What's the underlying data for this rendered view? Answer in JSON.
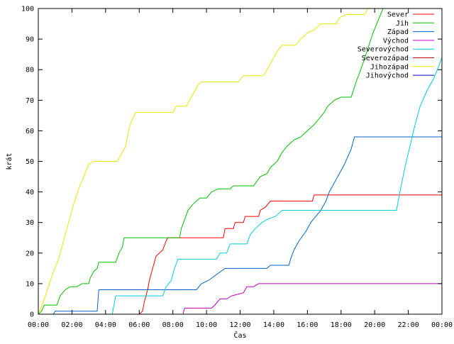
{
  "chart_data": {
    "type": "line",
    "title": "",
    "xlabel": "Čas",
    "ylabel": "krát",
    "xlim": [
      0,
      24
    ],
    "ylim": [
      0,
      100
    ],
    "grid": false,
    "legend_position": "top-right",
    "x_ticks": [
      {
        "v": 0,
        "label": "00:00"
      },
      {
        "v": 2,
        "label": "02:00"
      },
      {
        "v": 4,
        "label": "04:00"
      },
      {
        "v": 6,
        "label": "06:00"
      },
      {
        "v": 8,
        "label": "08:00"
      },
      {
        "v": 10,
        "label": "10:00"
      },
      {
        "v": 12,
        "label": "12:00"
      },
      {
        "v": 14,
        "label": "14:00"
      },
      {
        "v": 16,
        "label": "16:00"
      },
      {
        "v": 18,
        "label": "18:00"
      },
      {
        "v": 20,
        "label": "20:00"
      },
      {
        "v": 22,
        "label": "22:00"
      },
      {
        "v": 24,
        "label": "00:00"
      }
    ],
    "y_ticks": [
      {
        "v": 0,
        "label": "0"
      },
      {
        "v": 10,
        "label": "10"
      },
      {
        "v": 20,
        "label": "20"
      },
      {
        "v": 30,
        "label": "30"
      },
      {
        "v": 40,
        "label": "40"
      },
      {
        "v": 50,
        "label": "50"
      },
      {
        "v": 60,
        "label": "60"
      },
      {
        "v": 70,
        "label": "70"
      },
      {
        "v": 80,
        "label": "80"
      },
      {
        "v": 90,
        "label": "90"
      },
      {
        "v": 100,
        "label": "100"
      }
    ],
    "series": [
      {
        "name": "Sever",
        "color": "#ff0000",
        "points": [
          [
            6.0,
            0
          ],
          [
            6.2,
            1
          ],
          [
            6.3,
            4
          ],
          [
            6.5,
            8
          ],
          [
            6.6,
            11
          ],
          [
            6.75,
            14
          ],
          [
            6.9,
            17
          ],
          [
            7.0,
            19
          ],
          [
            7.2,
            20
          ],
          [
            7.4,
            21
          ],
          [
            7.6,
            24
          ],
          [
            7.7,
            25
          ],
          [
            11.0,
            25
          ],
          [
            11.1,
            28
          ],
          [
            11.6,
            28
          ],
          [
            11.7,
            30
          ],
          [
            12.2,
            30
          ],
          [
            12.3,
            32
          ],
          [
            13.1,
            32
          ],
          [
            13.2,
            34
          ],
          [
            13.5,
            35
          ],
          [
            13.8,
            37
          ],
          [
            16.3,
            37
          ],
          [
            16.4,
            39
          ],
          [
            24,
            39
          ]
        ]
      },
      {
        "name": "Jih",
        "color": "#00c000",
        "points": [
          [
            0,
            0
          ],
          [
            0.2,
            1
          ],
          [
            0.35,
            3
          ],
          [
            1.1,
            3
          ],
          [
            1.3,
            6
          ],
          [
            1.6,
            8
          ],
          [
            1.9,
            9
          ],
          [
            2.3,
            9
          ],
          [
            2.6,
            10
          ],
          [
            3.0,
            10
          ],
          [
            3.1,
            12
          ],
          [
            3.3,
            14
          ],
          [
            3.5,
            15
          ],
          [
            3.6,
            17
          ],
          [
            4.6,
            17
          ],
          [
            4.8,
            20
          ],
          [
            5.0,
            22
          ],
          [
            5.1,
            25
          ],
          [
            8.4,
            25
          ],
          [
            8.5,
            28
          ],
          [
            8.7,
            31
          ],
          [
            8.9,
            34
          ],
          [
            9.2,
            36
          ],
          [
            9.6,
            38
          ],
          [
            10.0,
            38
          ],
          [
            10.3,
            40
          ],
          [
            10.7,
            41
          ],
          [
            11.4,
            41
          ],
          [
            11.6,
            42
          ],
          [
            12.8,
            42
          ],
          [
            13.2,
            45
          ],
          [
            13.6,
            46
          ],
          [
            13.8,
            48
          ],
          [
            14.2,
            50
          ],
          [
            14.5,
            53
          ],
          [
            14.8,
            55
          ],
          [
            15.0,
            56
          ],
          [
            15.2,
            57
          ],
          [
            15.6,
            58
          ],
          [
            16.0,
            60
          ],
          [
            16.4,
            62
          ],
          [
            16.7,
            64
          ],
          [
            17.0,
            66
          ],
          [
            17.2,
            68
          ],
          [
            17.6,
            70
          ],
          [
            18.0,
            71
          ],
          [
            18.6,
            71
          ],
          [
            18.9,
            76
          ],
          [
            19.3,
            82
          ],
          [
            19.6,
            87
          ],
          [
            19.9,
            92
          ],
          [
            20.2,
            96
          ],
          [
            20.5,
            100
          ]
        ]
      },
      {
        "name": "Západ",
        "color": "#0066cc",
        "points": [
          [
            0.9,
            0
          ],
          [
            1.0,
            1
          ],
          [
            3.5,
            1
          ],
          [
            3.6,
            8
          ],
          [
            9.4,
            8
          ],
          [
            9.7,
            10
          ],
          [
            10.1,
            11
          ],
          [
            10.6,
            13
          ],
          [
            11.1,
            15
          ],
          [
            13.6,
            15
          ],
          [
            13.8,
            16
          ],
          [
            14.9,
            16
          ],
          [
            15.0,
            18
          ],
          [
            15.2,
            21
          ],
          [
            15.5,
            24
          ],
          [
            15.9,
            27
          ],
          [
            16.2,
            30
          ],
          [
            16.5,
            32
          ],
          [
            16.8,
            34
          ],
          [
            17.1,
            37
          ],
          [
            17.3,
            40
          ],
          [
            17.6,
            43
          ],
          [
            17.9,
            46
          ],
          [
            18.2,
            49
          ],
          [
            18.6,
            54
          ],
          [
            18.8,
            58
          ],
          [
            24,
            58
          ]
        ]
      },
      {
        "name": "Východ",
        "color": "#c000c0",
        "points": [
          [
            8.6,
            0
          ],
          [
            8.7,
            2
          ],
          [
            10.3,
            2
          ],
          [
            10.5,
            3
          ],
          [
            10.8,
            5
          ],
          [
            11.2,
            5
          ],
          [
            11.5,
            6
          ],
          [
            12.2,
            7
          ],
          [
            12.4,
            9
          ],
          [
            12.8,
            9
          ],
          [
            13.1,
            10
          ],
          [
            24,
            10
          ]
        ]
      },
      {
        "name": "Severovýchod",
        "color": "#00d0d8",
        "points": [
          [
            4.4,
            0
          ],
          [
            4.6,
            6
          ],
          [
            7.4,
            6
          ],
          [
            7.6,
            9
          ],
          [
            7.9,
            11
          ],
          [
            8.1,
            15
          ],
          [
            8.3,
            18
          ],
          [
            10.6,
            18
          ],
          [
            10.8,
            20
          ],
          [
            11.2,
            20
          ],
          [
            11.4,
            23
          ],
          [
            12.4,
            23
          ],
          [
            12.6,
            26
          ],
          [
            12.9,
            28
          ],
          [
            13.3,
            30
          ],
          [
            13.6,
            31
          ],
          [
            14.1,
            32
          ],
          [
            14.5,
            34
          ],
          [
            21.3,
            34
          ],
          [
            21.5,
            40
          ],
          [
            21.8,
            48
          ],
          [
            22.1,
            55
          ],
          [
            22.4,
            62
          ],
          [
            22.7,
            68
          ],
          [
            23.1,
            73
          ],
          [
            23.5,
            77
          ],
          [
            23.8,
            81
          ],
          [
            24,
            84
          ]
        ]
      },
      {
        "name": "Severozápad",
        "color": "#c00000",
        "points": []
      },
      {
        "name": "Jihozápad",
        "color": "#e8e800",
        "points": [
          [
            0,
            0
          ],
          [
            0.3,
            4
          ],
          [
            0.6,
            9
          ],
          [
            0.9,
            14
          ],
          [
            1.2,
            18
          ],
          [
            1.5,
            24
          ],
          [
            1.8,
            30
          ],
          [
            2.1,
            36
          ],
          [
            2.4,
            41
          ],
          [
            2.7,
            45
          ],
          [
            3.0,
            49
          ],
          [
            3.3,
            50
          ],
          [
            4.7,
            50
          ],
          [
            4.9,
            52
          ],
          [
            5.2,
            55
          ],
          [
            5.4,
            61
          ],
          [
            5.6,
            64
          ],
          [
            5.8,
            66
          ],
          [
            8.0,
            66
          ],
          [
            8.2,
            68
          ],
          [
            8.8,
            68
          ],
          [
            9.0,
            70
          ],
          [
            9.3,
            73
          ],
          [
            9.5,
            75
          ],
          [
            9.7,
            76
          ],
          [
            11.9,
            76
          ],
          [
            12.2,
            78
          ],
          [
            13.4,
            78
          ],
          [
            13.6,
            80
          ],
          [
            13.9,
            83
          ],
          [
            14.2,
            86
          ],
          [
            14.5,
            88
          ],
          [
            15.3,
            88
          ],
          [
            15.6,
            90
          ],
          [
            16.0,
            92
          ],
          [
            16.4,
            93
          ],
          [
            16.8,
            95
          ],
          [
            17.7,
            95
          ],
          [
            17.9,
            97
          ],
          [
            18.3,
            98
          ],
          [
            19.4,
            98
          ],
          [
            19.6,
            100
          ],
          [
            20.4,
            100
          ]
        ]
      },
      {
        "name": "Jihovýchod",
        "color": "#0000c0",
        "points": []
      }
    ]
  }
}
